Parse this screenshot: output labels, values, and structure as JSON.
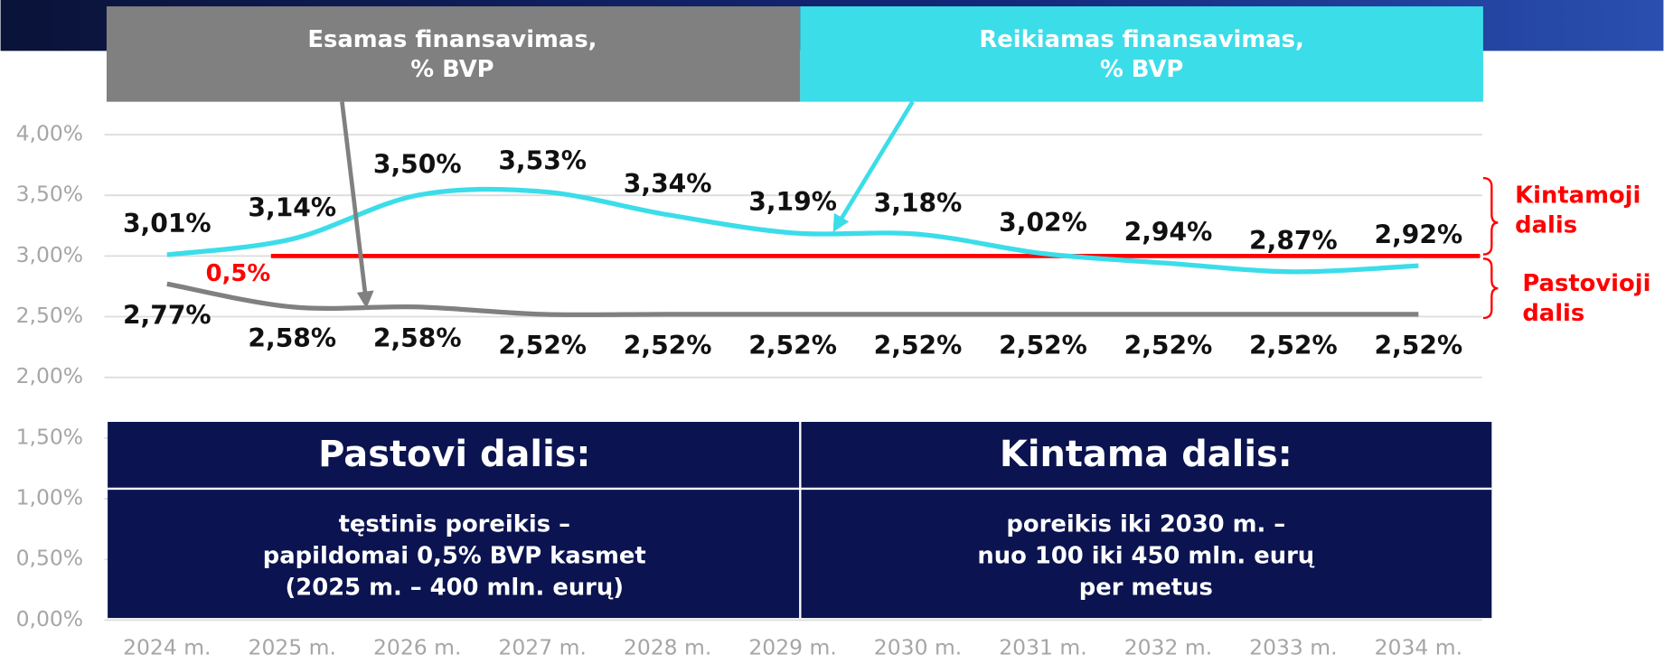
{
  "chart_data": {
    "type": "line",
    "categories": [
      "2024 m.",
      "2025 m.",
      "2026 m.",
      "2027 m.",
      "2028 m.",
      "2029 m.",
      "2030 m.",
      "2031 m.",
      "2032 m.",
      "2033 m.",
      "2034 m."
    ],
    "series": [
      {
        "name": [
          "Esamas finansavimas,",
          "% BVP"
        ],
        "color": "#808080",
        "values": [
          2.77,
          2.58,
          2.58,
          2.52,
          2.52,
          2.52,
          2.52,
          2.52,
          2.52,
          2.52,
          2.52
        ],
        "value_labels": [
          "2,77%",
          "2,58%",
          "2,58%",
          "2,52%",
          "2,52%",
          "2,52%",
          "2,52%",
          "2,52%",
          "2,52%",
          "2,52%",
          "2,52%"
        ]
      },
      {
        "name": [
          "Reikiamas finansavimas,",
          "% BVP"
        ],
        "color": "#3bdde9",
        "values": [
          3.01,
          3.14,
          3.5,
          3.53,
          3.34,
          3.19,
          3.18,
          3.02,
          2.94,
          2.87,
          2.92
        ],
        "value_labels": [
          "3,01%",
          "3,14%",
          "3,50%",
          "3,53%",
          "3,34%",
          "3,19%",
          "3,18%",
          "3,02%",
          "2,94%",
          "2,87%",
          "2,92%"
        ]
      }
    ],
    "ylim": [
      0,
      4
    ],
    "yticks": [
      {
        "value": 0,
        "label": "0,00%"
      },
      {
        "value": 0.5,
        "label": "0,50%"
      },
      {
        "value": 1,
        "label": "1,00%"
      },
      {
        "value": 1.5,
        "label": "1,50%"
      },
      {
        "value": 2,
        "label": "2,00%"
      },
      {
        "value": 2.5,
        "label": "2,50%"
      },
      {
        "value": 3,
        "label": "3,00%"
      },
      {
        "value": 3.5,
        "label": "3,50%"
      },
      {
        "value": 4,
        "label": "4,00%"
      }
    ],
    "grid": true,
    "reference_line": {
      "value": 3,
      "label": "0,5%",
      "color": "#ff0000"
    },
    "brackets": [
      [
        "Kintamoji",
        "dalis"
      ],
      [
        "Pastovioji",
        "dalis"
      ]
    ],
    "table": {
      "headers": [
        "Pastovi dalis:",
        "Kintama dalis:"
      ],
      "bodies": [
        [
          "tęstinis poreikis –",
          "papildomai 0,5% BVP kasmet",
          "(2025 m. – 400 mln. eurų)"
        ],
        [
          "poreikis iki 2030 m. –",
          "nuo 100 iki 450 mln. eurų",
          "per metus"
        ]
      ]
    }
  }
}
